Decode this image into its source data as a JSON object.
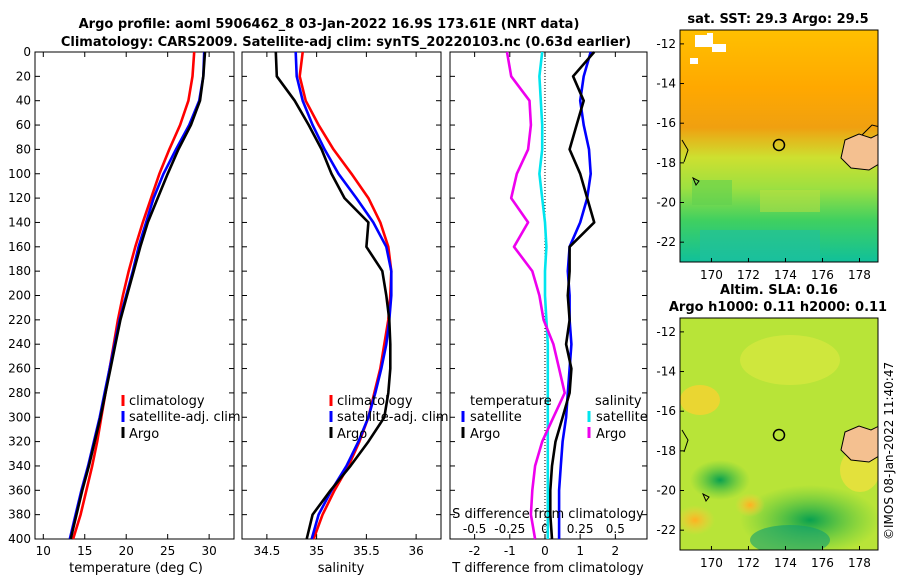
{
  "header": {
    "title_line1": "Argo profile: aoml 5906462_8 03-Jan-2022 16.9S 173.61E (NRT data)",
    "title_line2": "Climatology: CARS2009. Satellite-adj clim: synTS_20220103.nc (0.63d earlier)",
    "sst_title": "sat. SST: 29.3 Argo: 29.5",
    "sla_title1": "Altim. SLA: 0.16",
    "sla_title2": "Argo h1000: 0.11 h2000: 0.11",
    "credit": "©IMOS 08-Jan-2022 11:40:47"
  },
  "colors": {
    "climatology": "#ff0000",
    "satellite": "#0000ff",
    "argo": "#000000",
    "salinity_sat": "#00e5ee",
    "salinity_argo": "#ee00ee"
  },
  "chart_data": [
    {
      "id": "temperature",
      "type": "line",
      "xlabel": "temperature (deg C)",
      "ylim": [
        400,
        0
      ],
      "xlim": [
        9,
        33
      ],
      "xticks": [
        "10",
        "15",
        "20",
        "25",
        "30"
      ],
      "xtick_values": [
        10,
        15,
        20,
        25,
        30
      ],
      "yticks": [
        "0",
        "20",
        "40",
        "60",
        "80",
        "100",
        "120",
        "140",
        "160",
        "180",
        "200",
        "220",
        "240",
        "260",
        "280",
        "300",
        "320",
        "340",
        "360",
        "380",
        "400"
      ],
      "ytick_values": [
        0,
        20,
        40,
        60,
        80,
        100,
        120,
        140,
        160,
        180,
        200,
        220,
        240,
        260,
        280,
        300,
        320,
        340,
        360,
        380,
        400
      ],
      "series": [
        {
          "name": "climatology",
          "color": "#ff0000",
          "x": [
            28.2,
            28.0,
            27.5,
            26.5,
            25.2,
            24.0,
            23.0,
            22.0,
            21.1,
            20.3,
            19.6,
            19.0,
            18.5,
            18.0,
            17.5,
            17.0,
            16.5,
            15.9,
            15.2,
            14.5,
            13.6
          ],
          "y": [
            0,
            20,
            40,
            60,
            80,
            100,
            120,
            140,
            160,
            180,
            200,
            220,
            240,
            260,
            280,
            300,
            320,
            340,
            360,
            380,
            400
          ]
        },
        {
          "name": "satellite-adj. clim",
          "color": "#0000ff",
          "x": [
            29.4,
            29.3,
            28.8,
            27.6,
            26.0,
            24.5,
            23.3,
            22.4,
            21.5,
            20.8,
            20.0,
            19.2,
            18.6,
            18.0,
            17.4,
            16.8,
            16.1,
            15.4,
            14.6,
            13.9,
            13.2
          ],
          "y": [
            0,
            20,
            40,
            60,
            80,
            100,
            120,
            140,
            160,
            180,
            200,
            220,
            240,
            260,
            280,
            300,
            320,
            340,
            360,
            380,
            400
          ]
        },
        {
          "name": "Argo",
          "color": "#000000",
          "x": [
            29.5,
            29.3,
            28.9,
            27.8,
            26.3,
            25.0,
            23.8,
            22.6,
            21.7,
            20.9,
            20.1,
            19.3,
            18.7,
            18.1,
            17.5,
            16.9,
            16.2,
            15.5,
            14.7,
            14.0,
            13.3
          ],
          "y": [
            0,
            20,
            40,
            60,
            80,
            100,
            120,
            140,
            160,
            180,
            200,
            220,
            240,
            260,
            280,
            300,
            320,
            340,
            360,
            380,
            400
          ]
        }
      ],
      "legend": [
        "climatology",
        "satellite-adj. clim",
        "Argo"
      ]
    },
    {
      "id": "salinity",
      "type": "line",
      "xlabel": "salinity",
      "ylim": [
        400,
        0
      ],
      "xlim": [
        34.25,
        36.25
      ],
      "xticks": [
        "34.5",
        "35",
        "35.5",
        "36"
      ],
      "xtick_values": [
        34.5,
        35,
        35.5,
        36
      ],
      "series": [
        {
          "name": "climatology",
          "color": "#ff0000",
          "x": [
            34.86,
            34.83,
            34.89,
            35.02,
            35.17,
            35.35,
            35.52,
            35.64,
            35.72,
            35.75,
            35.74,
            35.72,
            35.68,
            35.64,
            35.58,
            35.52,
            35.43,
            35.32,
            35.18,
            35.06,
            34.97
          ],
          "y": [
            0,
            20,
            40,
            60,
            80,
            100,
            120,
            140,
            160,
            180,
            200,
            220,
            240,
            260,
            280,
            300,
            320,
            340,
            360,
            380,
            400
          ]
        },
        {
          "name": "satellite-adj. clim",
          "color": "#0000ff",
          "x": [
            34.79,
            34.8,
            34.86,
            34.96,
            35.08,
            35.22,
            35.4,
            35.57,
            35.7,
            35.75,
            35.75,
            35.73,
            35.7,
            35.65,
            35.59,
            35.52,
            35.42,
            35.3,
            35.15,
            35.02,
            34.95
          ],
          "y": [
            0,
            20,
            40,
            60,
            80,
            100,
            120,
            140,
            160,
            180,
            200,
            220,
            240,
            260,
            280,
            300,
            320,
            340,
            360,
            380,
            400
          ]
        },
        {
          "name": "Argo",
          "color": "#000000",
          "x": [
            34.59,
            34.6,
            34.78,
            34.92,
            35.05,
            35.15,
            35.28,
            35.52,
            35.5,
            35.66,
            35.7,
            35.73,
            35.74,
            35.74,
            35.72,
            35.68,
            35.52,
            35.34,
            35.14,
            34.96,
            34.9
          ],
          "y": [
            0,
            20,
            40,
            60,
            80,
            100,
            120,
            140,
            160,
            180,
            200,
            220,
            240,
            260,
            280,
            300,
            320,
            340,
            360,
            380,
            400
          ]
        }
      ],
      "legend": [
        "climatology",
        "satellite-adj. clim",
        "Argo"
      ]
    },
    {
      "id": "differences",
      "type": "line",
      "xlabel": "T difference from climatology",
      "xlabel_top": "S difference from climatology",
      "ylim": [
        400,
        0
      ],
      "xlim": [
        -2.7,
        2.9
      ],
      "xticks": [
        "-2",
        "-1",
        "0",
        "1",
        "2"
      ],
      "xtick_values": [
        -2,
        -1,
        0,
        1,
        2
      ],
      "top_xticks": [
        "-0.5",
        "-0.25",
        "0",
        "0.25",
        "0.5"
      ],
      "top_xtick_values": [
        -0.5,
        -0.25,
        0,
        0.25,
        0.5
      ],
      "series": [
        {
          "name": "temperature satellite",
          "color": "#0000ff",
          "x": [
            1.3,
            1.1,
            1.0,
            1.1,
            1.25,
            1.3,
            1.2,
            1.0,
            0.7,
            0.65,
            0.7,
            0.7,
            0.75,
            0.7,
            0.65,
            0.6,
            0.5,
            0.45,
            0.4,
            0.4,
            0.4
          ],
          "y": [
            0,
            20,
            40,
            60,
            80,
            100,
            120,
            140,
            160,
            180,
            200,
            220,
            240,
            260,
            280,
            300,
            320,
            340,
            360,
            380,
            400
          ]
        },
        {
          "name": "temperature Argo",
          "color": "#000000",
          "x": [
            1.4,
            0.8,
            1.1,
            0.9,
            0.7,
            1.0,
            1.2,
            1.4,
            0.7,
            0.7,
            0.65,
            0.7,
            0.6,
            0.75,
            0.7,
            0.5,
            0.3,
            0.2,
            0.15,
            0.15,
            0.2
          ],
          "y": [
            0,
            20,
            40,
            60,
            80,
            100,
            120,
            140,
            160,
            180,
            200,
            220,
            240,
            260,
            280,
            300,
            320,
            340,
            360,
            380,
            400
          ]
        },
        {
          "name": "salinity satellite",
          "color": "#00e5ee",
          "x": [
            -0.02,
            -0.04,
            -0.03,
            -0.02,
            -0.02,
            -0.04,
            -0.02,
            0.0,
            0.01,
            0.0,
            0.0,
            0.01,
            0.02,
            0.02,
            0.02,
            0.02,
            0.02,
            0.02,
            0.02,
            0.02,
            0.02
          ],
          "y": [
            0,
            20,
            40,
            60,
            80,
            100,
            120,
            140,
            160,
            180,
            200,
            220,
            240,
            260,
            280,
            300,
            320,
            340,
            360,
            380,
            400
          ]
        },
        {
          "name": "salinity Argo",
          "color": "#ee00ee",
          "x": [
            -0.27,
            -0.24,
            -0.11,
            -0.1,
            -0.12,
            -0.2,
            -0.24,
            -0.12,
            -0.22,
            -0.09,
            -0.04,
            -0.01,
            0.06,
            0.1,
            0.14,
            0.06,
            -0.02,
            -0.07,
            -0.09,
            -0.1,
            -0.07
          ],
          "y": [
            0,
            20,
            40,
            60,
            80,
            100,
            120,
            140,
            160,
            180,
            200,
            220,
            240,
            260,
            280,
            300,
            320,
            340,
            360,
            380,
            400
          ]
        }
      ],
      "legend_temperature_title": "temperature",
      "legend_salinity_title": "salinity",
      "legend_temperature": [
        "satellite",
        "Argo"
      ],
      "legend_salinity": [
        "satellite",
        "Argo"
      ]
    },
    {
      "id": "sst_map",
      "type": "heatmap",
      "title": "sat. SST: 29.3 Argo: 29.5",
      "xticks": [
        "170",
        "172",
        "174",
        "176",
        "178"
      ],
      "xtick_values": [
        170,
        172,
        174,
        176,
        178
      ],
      "yticks": [
        "-12",
        "-14",
        "-16",
        "-18",
        "-20",
        "-22"
      ],
      "ytick_values": [
        -12,
        -14,
        -16,
        -18,
        -20,
        -22
      ],
      "xlim": [
        168.3,
        179.0
      ],
      "ylim": [
        -11.3,
        -23.0
      ],
      "marker": {
        "lon": 173.61,
        "lat": -16.9
      }
    },
    {
      "id": "sla_map",
      "type": "heatmap",
      "title": "Altim. SLA: 0.16 / Argo h1000: 0.11 h2000: 0.11",
      "xticks": [
        "170",
        "172",
        "174",
        "176",
        "178"
      ],
      "xtick_values": [
        170,
        172,
        174,
        176,
        178
      ],
      "yticks": [
        "-12",
        "-14",
        "-16",
        "-18",
        "-20",
        "-22"
      ],
      "ytick_values": [
        -12,
        -14,
        -16,
        -18,
        -20,
        -22
      ],
      "xlim": [
        168.3,
        179.0
      ],
      "ylim": [
        -11.3,
        -23.0
      ],
      "marker": {
        "lon": 173.61,
        "lat": -16.9
      }
    }
  ]
}
